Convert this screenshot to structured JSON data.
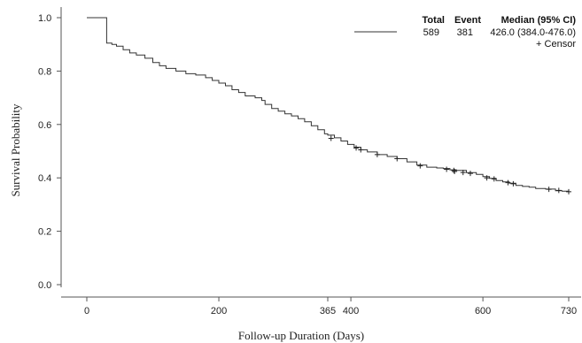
{
  "chart_data": {
    "type": "line",
    "title": "",
    "xlabel": "Follow-up Duration (Days)",
    "ylabel": "Survival Probability",
    "xlim": [
      -12,
      745
    ],
    "ylim": [
      -0.01,
      1.01
    ],
    "x_ticks": [
      0,
      200,
      365,
      400,
      600,
      730
    ],
    "y_ticks": [
      0.0,
      0.2,
      0.4,
      0.6,
      0.8,
      1.0
    ],
    "y_tick_labels": [
      "0.0",
      "0.2",
      "0.4",
      "0.6",
      "0.8",
      "1.0"
    ],
    "grid": false,
    "legend_position": "top-right",
    "line_color": "#333333",
    "legend": {
      "headers": [
        "Total",
        "Event",
        "Median (95% CI)"
      ],
      "values": [
        "589",
        "381",
        "426.0 (384.0-476.0)"
      ],
      "censor_label": "+ Censor"
    },
    "series": [
      {
        "steps": [
          [
            0,
            1.0
          ],
          [
            30,
            1.0
          ],
          [
            30,
            0.905
          ],
          [
            38,
            0.9
          ],
          [
            45,
            0.893
          ],
          [
            55,
            0.88
          ],
          [
            65,
            0.868
          ],
          [
            75,
            0.86
          ],
          [
            88,
            0.848
          ],
          [
            100,
            0.832
          ],
          [
            110,
            0.82
          ],
          [
            120,
            0.81
          ],
          [
            135,
            0.8
          ],
          [
            150,
            0.79
          ],
          [
            165,
            0.785
          ],
          [
            180,
            0.775
          ],
          [
            190,
            0.765
          ],
          [
            200,
            0.755
          ],
          [
            210,
            0.745
          ],
          [
            220,
            0.73
          ],
          [
            230,
            0.72
          ],
          [
            240,
            0.707
          ],
          [
            255,
            0.7
          ],
          [
            265,
            0.69
          ],
          [
            270,
            0.675
          ],
          [
            280,
            0.66
          ],
          [
            290,
            0.65
          ],
          [
            300,
            0.64
          ],
          [
            310,
            0.632
          ],
          [
            320,
            0.622
          ],
          [
            330,
            0.61
          ],
          [
            340,
            0.595
          ],
          [
            350,
            0.58
          ],
          [
            360,
            0.565
          ],
          [
            365,
            0.56
          ],
          [
            375,
            0.55
          ],
          [
            385,
            0.538
          ],
          [
            395,
            0.525
          ],
          [
            405,
            0.515
          ],
          [
            415,
            0.505
          ],
          [
            425,
            0.497
          ],
          [
            440,
            0.487
          ],
          [
            455,
            0.48
          ],
          [
            470,
            0.472
          ],
          [
            485,
            0.46
          ],
          [
            500,
            0.448
          ],
          [
            515,
            0.44
          ],
          [
            530,
            0.437
          ],
          [
            540,
            0.435
          ],
          [
            550,
            0.43
          ],
          [
            560,
            0.428
          ],
          [
            575,
            0.42
          ],
          [
            590,
            0.413
          ],
          [
            600,
            0.405
          ],
          [
            610,
            0.398
          ],
          [
            620,
            0.39
          ],
          [
            630,
            0.385
          ],
          [
            640,
            0.38
          ],
          [
            650,
            0.372
          ],
          [
            660,
            0.368
          ],
          [
            670,
            0.365
          ],
          [
            680,
            0.36
          ],
          [
            695,
            0.358
          ],
          [
            710,
            0.352
          ],
          [
            720,
            0.35
          ],
          [
            730,
            0.348
          ]
        ],
        "censor_points": [
          [
            370,
            0.548
          ],
          [
            408,
            0.512
          ],
          [
            415,
            0.505
          ],
          [
            440,
            0.487
          ],
          [
            470,
            0.472
          ],
          [
            505,
            0.445
          ],
          [
            545,
            0.432
          ],
          [
            556,
            0.428
          ],
          [
            557,
            0.424
          ],
          [
            570,
            0.42
          ],
          [
            581,
            0.417
          ],
          [
            606,
            0.4
          ],
          [
            617,
            0.396
          ],
          [
            638,
            0.382
          ],
          [
            646,
            0.378
          ],
          [
            700,
            0.357
          ],
          [
            715,
            0.353
          ],
          [
            730,
            0.348
          ]
        ]
      }
    ]
  }
}
